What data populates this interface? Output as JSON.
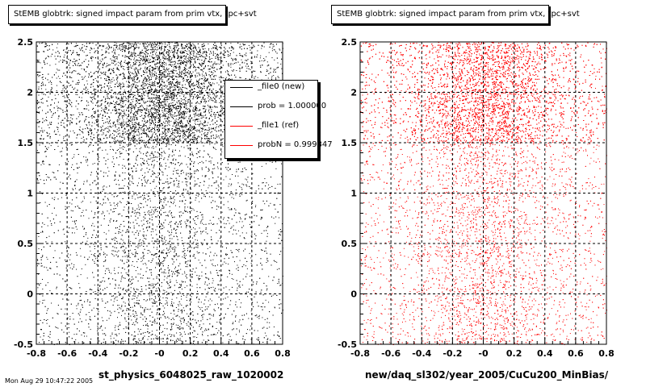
{
  "chart_data": [
    {
      "type": "scatter",
      "title": "StEMB globtrk: signed impact param from prim vtx, tpc+svt",
      "xlabel": "st_physics_6048025_raw_1020002",
      "ylabel": "",
      "xlim": [
        -0.8,
        0.8
      ],
      "ylim": [
        -0.5,
        2.5
      ],
      "x_ticks": [
        "-0.8",
        "-0.6",
        "-0.4",
        "-0.2",
        "-0",
        "0.2",
        "0.4",
        "0.6",
        "0.8"
      ],
      "y_ticks": [
        "-0.5",
        "0",
        "0.5",
        "1",
        "1.5",
        "2",
        "2.5"
      ],
      "grid": true,
      "marker_color": "#000000",
      "distribution": {
        "peak_x": 0.0,
        "dense_band_y": [
          1.5,
          2.5
        ],
        "sparse_band_y": [
          -0.5,
          1.5
        ]
      },
      "legend": {
        "placement": "top-right",
        "entries": [
          {
            "label": "_file0 (new)",
            "color": "#000000"
          },
          {
            "label": "prob = 1.000000",
            "color": "#000000"
          },
          {
            "label": "_file1 (ref)",
            "color": "#ff0000"
          },
          {
            "label": "probN = 0.999847",
            "color": "#ff0000"
          }
        ]
      }
    },
    {
      "type": "scatter",
      "title": "StEMB globtrk: signed impact param from prim vtx, tpc+svt",
      "xlabel": "new/daq_sl302/year_2005/CuCu200_MinBias/",
      "ylabel": "",
      "xlim": [
        -0.8,
        0.8
      ],
      "ylim": [
        -0.5,
        2.5
      ],
      "x_ticks": [
        "-0.8",
        "-0.6",
        "-0.4",
        "-0.2",
        "-0",
        "0.2",
        "0.4",
        "0.6",
        "0.8"
      ],
      "y_ticks": [
        "-0.5",
        "0",
        "0.5",
        "1",
        "1.5",
        "2",
        "2.5"
      ],
      "grid": true,
      "marker_color": "#ff0000",
      "distribution": {
        "peak_x": 0.0,
        "dense_band_y": [
          1.5,
          2.5
        ],
        "sparse_band_y": [
          -0.5,
          1.5
        ]
      }
    }
  ],
  "footer": "Mon Aug 29 10:47:22 2005"
}
